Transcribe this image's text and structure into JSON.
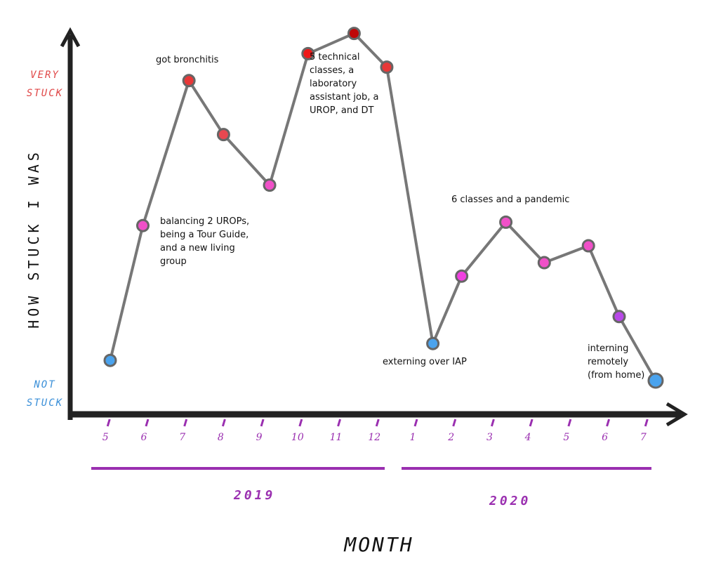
{
  "chart_data": {
    "type": "line",
    "ylabel": "HOW STUCK I WAS",
    "xlabel": "MONTH",
    "x": [
      0.05,
      0.9,
      2.1,
      3.0,
      4.2,
      5.2,
      6.4,
      7.25,
      8.45,
      9.2,
      10.35,
      11.35,
      12.5,
      13.3,
      14.25
    ],
    "values": [
      16,
      56,
      99,
      83,
      68,
      107,
      113,
      103,
      21,
      41,
      57,
      45,
      50,
      29,
      10
    ],
    "point_colors": [
      "#4aa3ee",
      "#f050c8",
      "#e83838",
      "#e84850",
      "#f050c8",
      "#ee1818",
      "#c00808",
      "#e83838",
      "#4aa3ee",
      "#f040e0",
      "#f050c8",
      "#f050c8",
      "#f050c8",
      "#b848e8",
      "#4aa3ee"
    ],
    "line_color": "#777777",
    "xlim": [
      -0.9,
      15
    ],
    "ylim": [
      0,
      115
    ],
    "xticks": [
      {
        "value": 0,
        "label": "5"
      },
      {
        "value": 1,
        "label": "6"
      },
      {
        "value": 2,
        "label": "7"
      },
      {
        "value": 3,
        "label": "8"
      },
      {
        "value": 4,
        "label": "9"
      },
      {
        "value": 5,
        "label": "10"
      },
      {
        "value": 6,
        "label": "11"
      },
      {
        "value": 7,
        "label": "12"
      },
      {
        "value": 8,
        "label": "1"
      },
      {
        "value": 9,
        "label": "2"
      },
      {
        "value": 10,
        "label": "3"
      },
      {
        "value": 11,
        "label": "4"
      },
      {
        "value": 12,
        "label": "5"
      },
      {
        "value": 13,
        "label": "6"
      },
      {
        "value": 14,
        "label": "7"
      }
    ],
    "yticks": [
      {
        "value": 6,
        "label": "NOT STUCK"
      },
      {
        "value": 98,
        "label": "VERY STUCK"
      }
    ],
    "ytick_colors": [
      "#3a8fd8",
      "#e04848"
    ],
    "x_groups": [
      "2019",
      "2020"
    ],
    "annotations": [
      "got bronchitis",
      "balancing 2 UROPs, being a Tour Guide, and a new living group",
      "5 technical classes, a laboratory assistant job, a UROP, and DT",
      "externing over IAP",
      "6 classes and a pandemic",
      "interning remotely (from home)"
    ]
  }
}
